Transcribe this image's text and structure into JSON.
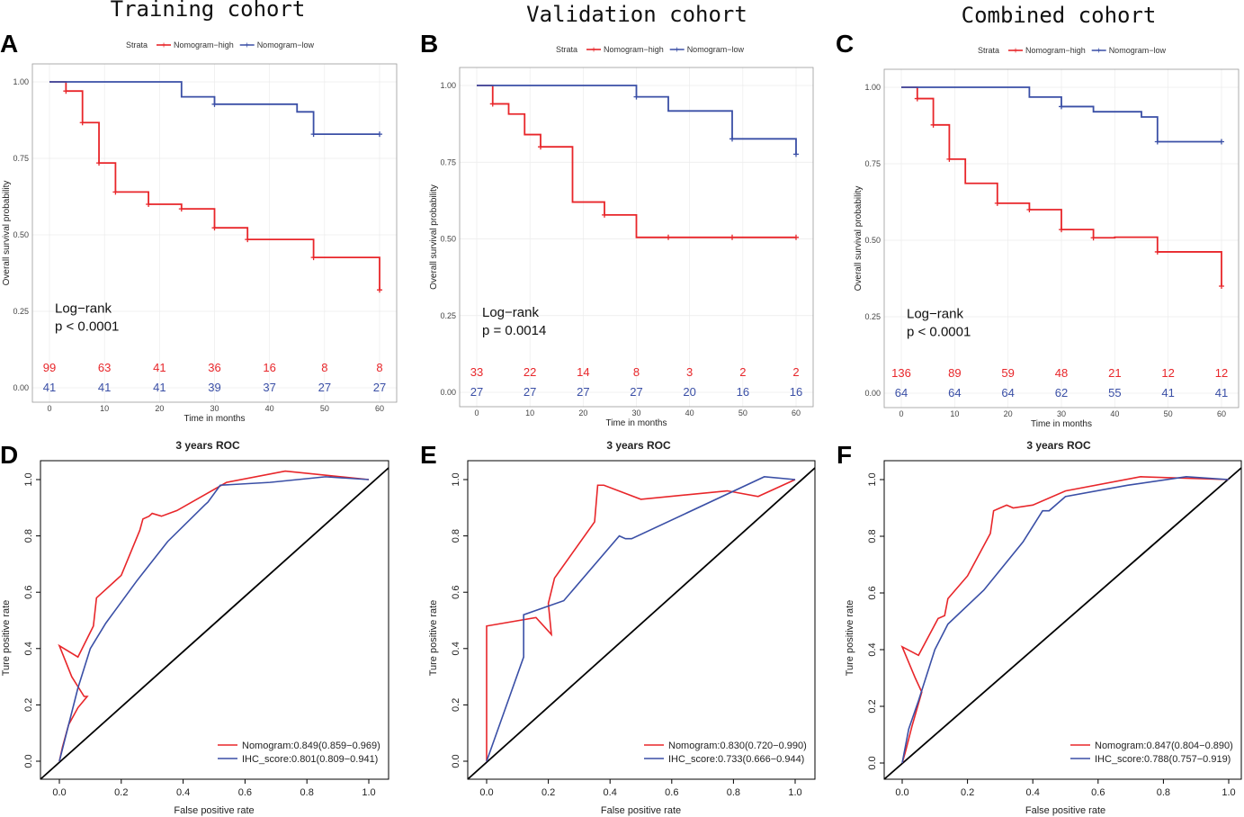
{
  "colors": {
    "high": "#e8262a",
    "low": "#3a4fa6",
    "diag": "#000000",
    "grid": "#ebebeb",
    "frame": "#999999"
  },
  "chart_data": [
    {
      "panel": "A",
      "type": "line",
      "kind": "kaplan-meier",
      "title": "Training cohort",
      "legend_title": "Strata",
      "xlabel": "Time in months",
      "ylabel": "Overall survival probability",
      "xlim": [
        0,
        60
      ],
      "ylim": [
        0,
        1
      ],
      "xticks": [
        "0",
        "10",
        "20",
        "30",
        "40",
        "50",
        "60"
      ],
      "yticks": [
        "0.00",
        "0.25",
        "0.50",
        "0.75",
        "1.00"
      ],
      "annotation": [
        "Log−rank",
        "p < 0.0001"
      ],
      "series": [
        {
          "name": "Nomogram−high",
          "steps": [
            [
              0,
              1
            ],
            [
              3,
              0.97
            ],
            [
              6,
              0.867
            ],
            [
              9,
              0.735
            ],
            [
              12,
              0.64
            ],
            [
              18,
              0.6
            ],
            [
              24,
              0.585
            ],
            [
              30,
              0.523
            ],
            [
              36,
              0.485
            ],
            [
              48,
              0.426
            ],
            [
              60,
              0.32
            ]
          ],
          "censors": [
            [
              3,
              0.97
            ],
            [
              6,
              0.867
            ],
            [
              9,
              0.735
            ],
            [
              12,
              0.64
            ],
            [
              18,
              0.6
            ],
            [
              24,
              0.585
            ],
            [
              30,
              0.523
            ],
            [
              36,
              0.485
            ],
            [
              48,
              0.426
            ],
            [
              60,
              0.32
            ]
          ],
          "at_risk": [
            "99",
            "63",
            "41",
            "36",
            "16",
            "8",
            "8"
          ]
        },
        {
          "name": "Nomogram−low",
          "steps": [
            [
              0,
              1
            ],
            [
              24,
              0.951
            ],
            [
              30,
              0.927
            ],
            [
              45,
              0.902
            ],
            [
              48,
              0.829
            ],
            [
              60,
              0.829
            ]
          ],
          "censors": [
            [
              30,
              0.927
            ],
            [
              48,
              0.829
            ],
            [
              60,
              0.829
            ]
          ],
          "at_risk": [
            "41",
            "41",
            "41",
            "39",
            "37",
            "27",
            "27"
          ]
        }
      ]
    },
    {
      "panel": "B",
      "type": "line",
      "kind": "kaplan-meier",
      "title": "Validation cohort",
      "legend_title": "Strata",
      "xlabel": "Time in months",
      "ylabel": "Overall survival probability",
      "xlim": [
        0,
        60
      ],
      "ylim": [
        0,
        1
      ],
      "xticks": [
        "0",
        "10",
        "20",
        "30",
        "40",
        "50",
        "60"
      ],
      "yticks": [
        "0.00",
        "0.25",
        "0.50",
        "0.75",
        "1.00"
      ],
      "annotation": [
        "Log−rank",
        "p = 0.0014"
      ],
      "series": [
        {
          "name": "Nomogram−high",
          "steps": [
            [
              0,
              1
            ],
            [
              3,
              0.94
            ],
            [
              6,
              0.907
            ],
            [
              9,
              0.84
            ],
            [
              12,
              0.8
            ],
            [
              18,
              0.62
            ],
            [
              24,
              0.578
            ],
            [
              30,
              0.505
            ],
            [
              60,
              0.505
            ]
          ],
          "censors": [
            [
              3,
              0.94
            ],
            [
              12,
              0.8
            ],
            [
              24,
              0.578
            ],
            [
              36,
              0.505
            ],
            [
              48,
              0.505
            ],
            [
              60,
              0.505
            ]
          ],
          "at_risk": [
            "33",
            "22",
            "14",
            "8",
            "3",
            "2",
            "2"
          ]
        },
        {
          "name": "Nomogram−low",
          "steps": [
            [
              0,
              1
            ],
            [
              30,
              0.963
            ],
            [
              36,
              0.917
            ],
            [
              48,
              0.826
            ],
            [
              60,
              0.826
            ],
            [
              60,
              0.776
            ]
          ],
          "censors": [
            [
              30,
              0.963
            ],
            [
              48,
              0.826
            ],
            [
              60,
              0.776
            ]
          ],
          "at_risk": [
            "27",
            "27",
            "27",
            "27",
            "20",
            "16",
            "16"
          ]
        }
      ]
    },
    {
      "panel": "C",
      "type": "line",
      "kind": "kaplan-meier",
      "title": "Combined cohort",
      "legend_title": "Strata",
      "xlabel": "Time in months",
      "ylabel": "Overall survival probability",
      "xlim": [
        0,
        60
      ],
      "ylim": [
        0,
        1
      ],
      "xticks": [
        "0",
        "10",
        "20",
        "30",
        "40",
        "50",
        "60"
      ],
      "yticks": [
        "0.00",
        "0.25",
        "0.50",
        "0.75",
        "1.00"
      ],
      "annotation": [
        "Log−rank",
        "p < 0.0001"
      ],
      "series": [
        {
          "name": "Nomogram−high",
          "steps": [
            [
              0,
              1
            ],
            [
              3,
              0.963
            ],
            [
              6,
              0.877
            ],
            [
              9,
              0.765
            ],
            [
              12,
              0.686
            ],
            [
              18,
              0.621
            ],
            [
              24,
              0.6
            ],
            [
              30,
              0.535
            ],
            [
              36,
              0.508
            ],
            [
              40,
              0.51
            ],
            [
              48,
              0.462
            ],
            [
              60,
              0.35
            ]
          ],
          "censors": [
            [
              3,
              0.963
            ],
            [
              6,
              0.877
            ],
            [
              9,
              0.765
            ],
            [
              18,
              0.621
            ],
            [
              24,
              0.6
            ],
            [
              30,
              0.535
            ],
            [
              36,
              0.508
            ],
            [
              48,
              0.462
            ],
            [
              60,
              0.35
            ]
          ],
          "at_risk": [
            "136",
            "89",
            "59",
            "48",
            "21",
            "12",
            "12"
          ]
        },
        {
          "name": "Nomogram−low",
          "steps": [
            [
              0,
              1
            ],
            [
              24,
              0.968
            ],
            [
              30,
              0.937
            ],
            [
              36,
              0.92
            ],
            [
              42,
              0.92
            ],
            [
              45,
              0.903
            ],
            [
              48,
              0.822
            ],
            [
              60,
              0.822
            ]
          ],
          "censors": [
            [
              30,
              0.937
            ],
            [
              48,
              0.822
            ],
            [
              60,
              0.822
            ]
          ],
          "at_risk": [
            "64",
            "64",
            "64",
            "62",
            "55",
            "41",
            "41"
          ]
        }
      ]
    },
    {
      "panel": "D",
      "type": "line",
      "kind": "roc",
      "title": "3 years ROC",
      "xlabel": "False positive rate",
      "ylabel": "Ture positive rate",
      "xlim": [
        0,
        1
      ],
      "ylim": [
        0,
        1
      ],
      "xticks": [
        "0.0",
        "0.2",
        "0.4",
        "0.6",
        "0.8",
        "1.0"
      ],
      "yticks": [
        "0.0",
        "0.2",
        "0.4",
        "0.6",
        "0.8",
        "1.0"
      ],
      "series": [
        {
          "name": "Nomogram",
          "label": "Nomogram:0.849(0.859−0.969)",
          "points": [
            [
              0,
              0
            ],
            [
              0.01,
              0.05
            ],
            [
              0.03,
              0.13
            ],
            [
              0.06,
              0.19
            ],
            [
              0.09,
              0.23
            ],
            [
              0.08,
              0.23
            ],
            [
              0.04,
              0.3
            ],
            [
              0,
              0.41
            ],
            [
              0.06,
              0.37
            ],
            [
              0.11,
              0.48
            ],
            [
              0.12,
              0.58
            ],
            [
              0.2,
              0.66
            ],
            [
              0.26,
              0.82
            ],
            [
              0.27,
              0.86
            ],
            [
              0.29,
              0.87
            ],
            [
              0.3,
              0.88
            ],
            [
              0.33,
              0.87
            ],
            [
              0.38,
              0.89
            ],
            [
              0.54,
              0.99
            ],
            [
              0.73,
              1.03
            ],
            [
              1,
              1
            ]
          ]
        },
        {
          "name": "IHC_score",
          "label": "IHC_score:0.801(0.809−0.941)",
          "points": [
            [
              0,
              0
            ],
            [
              0.03,
              0.13
            ],
            [
              0.06,
              0.26
            ],
            [
              0.08,
              0.33
            ],
            [
              0.1,
              0.4
            ],
            [
              0.15,
              0.49
            ],
            [
              0.25,
              0.64
            ],
            [
              0.35,
              0.78
            ],
            [
              0.47,
              0.91
            ],
            [
              0.48,
              0.92
            ],
            [
              0.52,
              0.98
            ],
            [
              0.68,
              0.99
            ],
            [
              0.86,
              1.01
            ],
            [
              1,
              1
            ]
          ]
        }
      ]
    },
    {
      "panel": "E",
      "type": "line",
      "kind": "roc",
      "title": "3 years ROC",
      "xlabel": "False positive rate",
      "ylabel": "Ture positive rate",
      "xlim": [
        0,
        1
      ],
      "ylim": [
        0,
        1
      ],
      "xticks": [
        "0.0",
        "0.2",
        "0.4",
        "0.6",
        "0.8",
        "1.0"
      ],
      "yticks": [
        "0.0",
        "0.2",
        "0.4",
        "0.6",
        "0.8",
        "1.0"
      ],
      "series": [
        {
          "name": "Nomogram",
          "label": "Nomogram:0.830(0.720−0.990)",
          "points": [
            [
              0,
              0
            ],
            [
              0,
              0.48
            ],
            [
              0.16,
              0.51
            ],
            [
              0.21,
              0.45
            ],
            [
              0.2,
              0.56
            ],
            [
              0.22,
              0.65
            ],
            [
              0.35,
              0.85
            ],
            [
              0.36,
              0.98
            ],
            [
              0.38,
              0.98
            ],
            [
              0.5,
              0.93
            ],
            [
              0.78,
              0.96
            ],
            [
              0.88,
              0.94
            ],
            [
              1,
              1
            ]
          ]
        },
        {
          "name": "IHC_score",
          "label": "IHC_score:0.733(0.666−0.944)",
          "points": [
            [
              0,
              0
            ],
            [
              0.12,
              0.37
            ],
            [
              0.12,
              0.52
            ],
            [
              0.25,
              0.57
            ],
            [
              0.43,
              0.8
            ],
            [
              0.45,
              0.79
            ],
            [
              0.47,
              0.79
            ],
            [
              0.9,
              1.01
            ],
            [
              1,
              1
            ]
          ]
        }
      ]
    },
    {
      "panel": "F",
      "type": "line",
      "kind": "roc",
      "title": "3 years ROC",
      "xlabel": "False positive rate",
      "ylabel": "Ture positive rate",
      "xlim": [
        0,
        1
      ],
      "ylim": [
        0,
        1
      ],
      "xticks": [
        "0.0",
        "0.2",
        "0.4",
        "0.6",
        "0.8",
        "1.0"
      ],
      "yticks": [
        "0.0",
        "0.2",
        "0.4",
        "0.6",
        "0.8",
        "1.0"
      ],
      "series": [
        {
          "name": "Nomogram",
          "label": "Nomogram:0.847(0.804−0.890)",
          "points": [
            [
              0,
              0
            ],
            [
              0.01,
              0.04
            ],
            [
              0.03,
              0.13
            ],
            [
              0.06,
              0.25
            ],
            [
              0.04,
              0.3
            ],
            [
              0,
              0.41
            ],
            [
              0.05,
              0.38
            ],
            [
              0.11,
              0.51
            ],
            [
              0.13,
              0.52
            ],
            [
              0.14,
              0.58
            ],
            [
              0.2,
              0.66
            ],
            [
              0.27,
              0.81
            ],
            [
              0.28,
              0.89
            ],
            [
              0.3,
              0.9
            ],
            [
              0.32,
              0.91
            ],
            [
              0.34,
              0.9
            ],
            [
              0.4,
              0.91
            ],
            [
              0.5,
              0.96
            ],
            [
              0.73,
              1.01
            ],
            [
              1,
              1
            ]
          ]
        },
        {
          "name": "IHC_score",
          "label": "IHC_score:0.788(0.757−0.919)",
          "points": [
            [
              0,
              0
            ],
            [
              0.02,
              0.12
            ],
            [
              0.05,
              0.22
            ],
            [
              0.1,
              0.4
            ],
            [
              0.14,
              0.49
            ],
            [
              0.25,
              0.61
            ],
            [
              0.37,
              0.78
            ],
            [
              0.43,
              0.89
            ],
            [
              0.45,
              0.89
            ],
            [
              0.5,
              0.94
            ],
            [
              0.69,
              0.98
            ],
            [
              0.87,
              1.01
            ],
            [
              1,
              1
            ]
          ]
        }
      ]
    }
  ]
}
